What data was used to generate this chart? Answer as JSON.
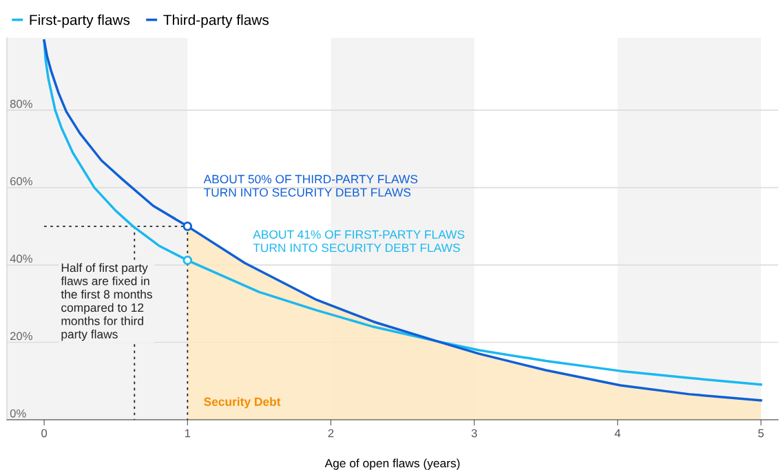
{
  "chart_data": {
    "type": "line",
    "xlabel": "Age of open flaws (years)",
    "xlim": [
      -0.26,
      5.12
    ],
    "xticks": [
      0,
      1,
      2,
      3,
      4,
      5
    ],
    "ylim": [
      0,
      98.7
    ],
    "yticks": [
      {
        "value": 0,
        "label": "0%"
      },
      {
        "value": 20,
        "label": "20%"
      },
      {
        "value": 40,
        "label": "40%"
      },
      {
        "value": 60,
        "label": "60%"
      },
      {
        "value": 80,
        "label": "80%"
      }
    ],
    "grid": "y",
    "legend": "top left",
    "series": [
      {
        "type": "area",
        "color": "#fde7c0",
        "x": [
          1,
          1.4,
          1.9,
          2.3,
          2.74,
          3.03,
          3.5,
          4.02,
          4.5,
          5
        ],
        "values": [
          50,
          40.5,
          31,
          25.3,
          20.3,
          17.1,
          12.8,
          8.9,
          6.6,
          5
        ]
      },
      {
        "name": "First-party flaws",
        "color": "#1ab8f0",
        "x": [
          0,
          0.01,
          0.03,
          0.077,
          0.12,
          0.2,
          0.35,
          0.5,
          0.62,
          0.8,
          1,
          1.5,
          1.9,
          2.3,
          2.74,
          3.03,
          3.5,
          4.02,
          4.5,
          5
        ],
        "values": [
          98,
          93,
          88,
          80,
          75.5,
          69,
          60,
          54,
          50,
          45,
          41.2,
          33,
          28.3,
          24,
          20.3,
          18,
          15.2,
          12.6,
          10.8,
          9.1
        ]
      },
      {
        "name": "Third-party flaws",
        "color": "#0f5fd6",
        "x": [
          0,
          0.02,
          0.05,
          0.1,
          0.155,
          0.25,
          0.4,
          0.55,
          0.76,
          1,
          1.4,
          1.9,
          2.3,
          2.74,
          3.03,
          3.5,
          4.02,
          4.5,
          5
        ],
        "values": [
          98,
          94,
          90,
          84.5,
          79.6,
          74,
          67,
          62,
          55.3,
          50,
          40.5,
          31,
          25.3,
          20.3,
          17.1,
          12.8,
          8.9,
          6.6,
          5
        ]
      },
      {
        "type": "line",
        "color": "#222222",
        "line_style": "dotted",
        "x": [
          0,
          1,
          1
        ],
        "values": [
          50,
          50,
          0
        ]
      },
      {
        "type": "line",
        "color": "#222222",
        "line_style": "dotted",
        "x": [
          0.63,
          0.63
        ],
        "values": [
          50,
          0
        ]
      },
      {
        "type": "scatter",
        "color": "#1ab8f0",
        "marker": "circle",
        "x": [
          1
        ],
        "values": [
          41.2
        ]
      },
      {
        "type": "scatter",
        "color": "#0f5fd6",
        "marker": "circle",
        "x": [
          1
        ],
        "values": [
          50
        ]
      }
    ],
    "bands": [
      {
        "axis": "x",
        "from": -0.26,
        "to": 1,
        "color": "#f3f3f3"
      },
      {
        "axis": "x",
        "from": 2,
        "to": 3,
        "color": "#f3f3f3"
      },
      {
        "axis": "x",
        "from": 4,
        "to": 5,
        "color": "#f3f3f3"
      }
    ],
    "annotations": [
      "ABOUT 50% OF THIRD-PARTY FLAWS\nTURN INTO SECURITY DEBT FLAWS",
      "ABOUT 41% OF FIRST-PARTY FLAWS\nTURN INTO SECURITY DEBT FLAWS",
      "Half of first party\nflaws are fixed in\nthe first 8 months\ncompared to 12\nmonths for third\nparty flaws",
      "Security Debt"
    ]
  }
}
